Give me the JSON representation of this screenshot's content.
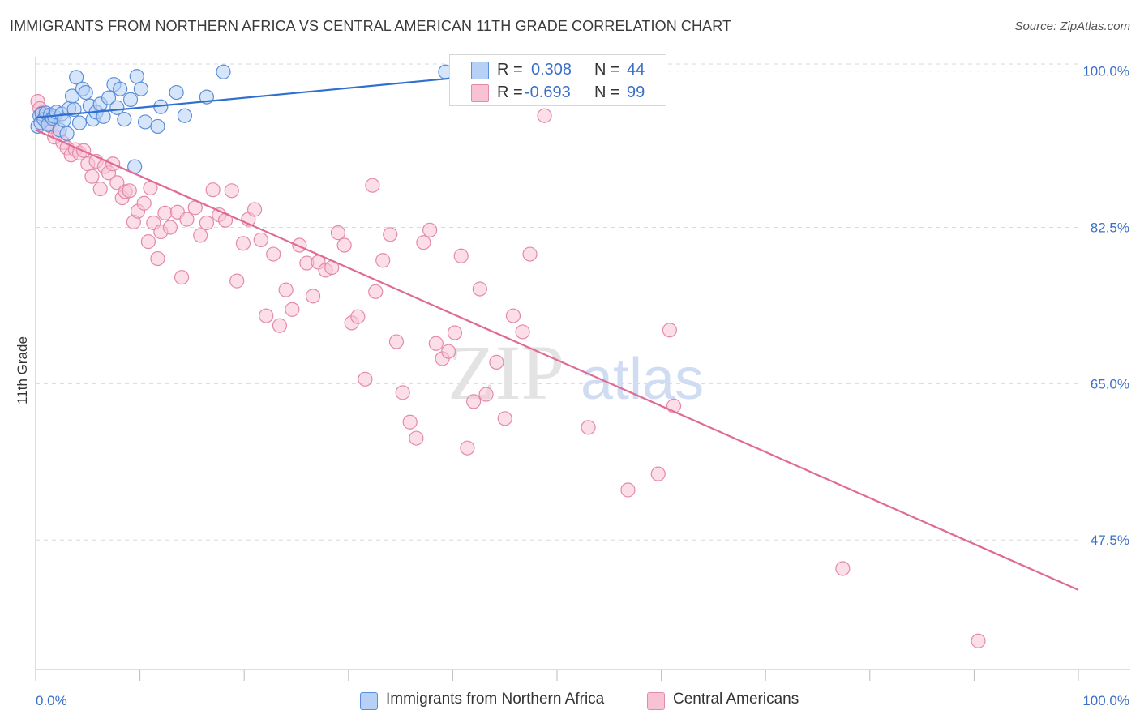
{
  "title": "IMMIGRANTS FROM NORTHERN AFRICA VS CENTRAL AMERICAN 11TH GRADE CORRELATION CHART",
  "source": "Source: ZipAtlas.com",
  "watermark": {
    "zip": "ZIP",
    "atlas": "atlas"
  },
  "colors": {
    "blue_fill": "#b7d0f5",
    "blue_stroke": "#5b8fd9",
    "blue_line": "#2f6fcf",
    "pink_fill": "#f7c3d3",
    "pink_stroke": "#e48aa8",
    "pink_line": "#e06a96",
    "value_text": "#3a6fc9",
    "grid": "#d9d9d9"
  },
  "legend": {
    "rows": [
      {
        "r_label": "R =",
        "r_value": "0.308",
        "n_label": "N =",
        "n_value": "44"
      },
      {
        "r_label": "R =",
        "r_value": "-0.693",
        "n_label": "N =",
        "n_value": "99"
      }
    ]
  },
  "bottom_legend": {
    "blue": "Immigrants from Northern Africa",
    "pink": "Central Americans"
  },
  "chart_data": {
    "type": "scatter",
    "title": "IMMIGRANTS FROM NORTHERN AFRICA VS CENTRAL AMERICAN 11TH GRADE CORRELATION CHART",
    "ylabel": "11th Grade",
    "xlabel": "",
    "x_tick_labels": [
      "0.0%",
      "100.0%"
    ],
    "y_tick_labels": [
      "100.0%",
      "82.5%",
      "65.0%",
      "47.5%"
    ],
    "y_ticks": [
      100.0,
      82.5,
      65.0,
      47.5
    ],
    "xlim": [
      0,
      100
    ],
    "ylim": [
      33,
      101.6
    ],
    "grid": true,
    "legend_position": "top-center",
    "series": [
      {
        "name": "Immigrants from Northern Africa",
        "color": "#5b8fd9",
        "r": 0.308,
        "n": 44,
        "trend": {
          "x": [
            0,
            40
          ],
          "y": [
            94.8,
            99.2
          ]
        },
        "points": [
          [
            0.2,
            93.8
          ],
          [
            0.4,
            95.0
          ],
          [
            0.5,
            94.2
          ],
          [
            0.6,
            95.2
          ],
          [
            0.8,
            94.6
          ],
          [
            1.0,
            95.3
          ],
          [
            1.2,
            94.0
          ],
          [
            1.4,
            95.1
          ],
          [
            1.6,
            94.7
          ],
          [
            1.8,
            94.9
          ],
          [
            2.0,
            95.4
          ],
          [
            2.3,
            93.4
          ],
          [
            2.5,
            95.2
          ],
          [
            2.7,
            94.5
          ],
          [
            3.0,
            93.0
          ],
          [
            3.2,
            95.8
          ],
          [
            3.5,
            97.2
          ],
          [
            3.7,
            95.7
          ],
          [
            3.9,
            99.3
          ],
          [
            4.2,
            94.2
          ],
          [
            4.5,
            98.0
          ],
          [
            4.8,
            97.6
          ],
          [
            5.2,
            96.1
          ],
          [
            5.5,
            94.6
          ],
          [
            5.8,
            95.4
          ],
          [
            6.2,
            96.3
          ],
          [
            6.5,
            94.9
          ],
          [
            7.0,
            97.0
          ],
          [
            7.5,
            98.5
          ],
          [
            7.8,
            95.9
          ],
          [
            8.1,
            98.0
          ],
          [
            8.5,
            94.6
          ],
          [
            9.1,
            96.8
          ],
          [
            9.5,
            89.3
          ],
          [
            9.7,
            99.4
          ],
          [
            10.1,
            98.0
          ],
          [
            10.5,
            94.3
          ],
          [
            11.7,
            93.8
          ],
          [
            12.0,
            96.0
          ],
          [
            13.5,
            97.6
          ],
          [
            14.3,
            95.0
          ],
          [
            16.4,
            97.1
          ],
          [
            18.0,
            99.9
          ],
          [
            39.3,
            99.9
          ]
        ]
      },
      {
        "name": "Central Americans",
        "color": "#e48aa8",
        "r": -0.693,
        "n": 99,
        "trend": {
          "x": [
            0,
            100
          ],
          "y": [
            93.4,
            41.9
          ]
        },
        "points": [
          [
            0.2,
            96.6
          ],
          [
            0.4,
            95.8
          ],
          [
            0.6,
            95.3
          ],
          [
            0.9,
            95.0
          ],
          [
            1.2,
            94.2
          ],
          [
            1.5,
            93.8
          ],
          [
            1.8,
            92.6
          ],
          [
            2.2,
            93.1
          ],
          [
            2.6,
            92.0
          ],
          [
            3.0,
            91.4
          ],
          [
            3.4,
            90.6
          ],
          [
            3.8,
            91.2
          ],
          [
            4.2,
            90.8
          ],
          [
            4.6,
            91.1
          ],
          [
            5.0,
            89.6
          ],
          [
            5.4,
            88.2
          ],
          [
            5.8,
            89.9
          ],
          [
            6.2,
            86.8
          ],
          [
            6.6,
            89.3
          ],
          [
            7.0,
            88.6
          ],
          [
            7.4,
            89.6
          ],
          [
            7.8,
            87.5
          ],
          [
            8.3,
            85.8
          ],
          [
            8.6,
            86.5
          ],
          [
            9.0,
            86.6
          ],
          [
            9.4,
            83.1
          ],
          [
            9.8,
            84.3
          ],
          [
            10.4,
            85.2
          ],
          [
            10.8,
            80.9
          ],
          [
            11.3,
            83.0
          ],
          [
            11.7,
            79.0
          ],
          [
            12.0,
            82.0
          ],
          [
            12.4,
            84.1
          ],
          [
            12.9,
            82.5
          ],
          [
            13.6,
            84.2
          ],
          [
            14.0,
            76.9
          ],
          [
            14.5,
            83.4
          ],
          [
            15.3,
            84.7
          ],
          [
            15.8,
            81.6
          ],
          [
            16.4,
            83.0
          ],
          [
            17.0,
            86.7
          ],
          [
            17.6,
            83.9
          ],
          [
            18.2,
            83.3
          ],
          [
            18.8,
            86.6
          ],
          [
            19.3,
            76.5
          ],
          [
            19.9,
            80.7
          ],
          [
            20.4,
            83.4
          ],
          [
            21.0,
            84.5
          ],
          [
            21.6,
            81.1
          ],
          [
            22.1,
            72.6
          ],
          [
            22.8,
            79.5
          ],
          [
            23.4,
            71.5
          ],
          [
            24.0,
            75.5
          ],
          [
            24.6,
            73.3
          ],
          [
            25.3,
            80.5
          ],
          [
            26.0,
            78.5
          ],
          [
            26.6,
            74.8
          ],
          [
            27.1,
            78.6
          ],
          [
            27.8,
            77.7
          ],
          [
            28.4,
            78.0
          ],
          [
            29.0,
            81.9
          ],
          [
            29.6,
            80.5
          ],
          [
            30.3,
            71.8
          ],
          [
            30.9,
            72.5
          ],
          [
            31.6,
            65.5
          ],
          [
            32.3,
            87.2
          ],
          [
            32.6,
            75.3
          ],
          [
            33.3,
            78.8
          ],
          [
            34.0,
            81.7
          ],
          [
            34.6,
            69.7
          ],
          [
            35.2,
            64.0
          ],
          [
            35.9,
            60.7
          ],
          [
            36.5,
            58.9
          ],
          [
            37.2,
            80.8
          ],
          [
            37.8,
            82.2
          ],
          [
            38.4,
            69.5
          ],
          [
            39.0,
            67.8
          ],
          [
            39.6,
            68.6
          ],
          [
            40.2,
            70.7
          ],
          [
            40.8,
            79.3
          ],
          [
            41.4,
            57.8
          ],
          [
            42.0,
            63.0
          ],
          [
            42.6,
            75.6
          ],
          [
            43.2,
            63.8
          ],
          [
            44.2,
            67.4
          ],
          [
            45.0,
            61.1
          ],
          [
            45.8,
            72.6
          ],
          [
            46.7,
            70.8
          ],
          [
            47.4,
            79.5
          ],
          [
            48.0,
            98.1
          ],
          [
            48.8,
            95.0
          ],
          [
            53.0,
            60.1
          ],
          [
            56.8,
            53.1
          ],
          [
            59.7,
            54.9
          ],
          [
            60.8,
            71.0
          ],
          [
            61.2,
            62.5
          ],
          [
            77.4,
            44.3
          ],
          [
            90.4,
            36.2
          ],
          [
            11.0,
            86.9
          ]
        ]
      }
    ]
  }
}
